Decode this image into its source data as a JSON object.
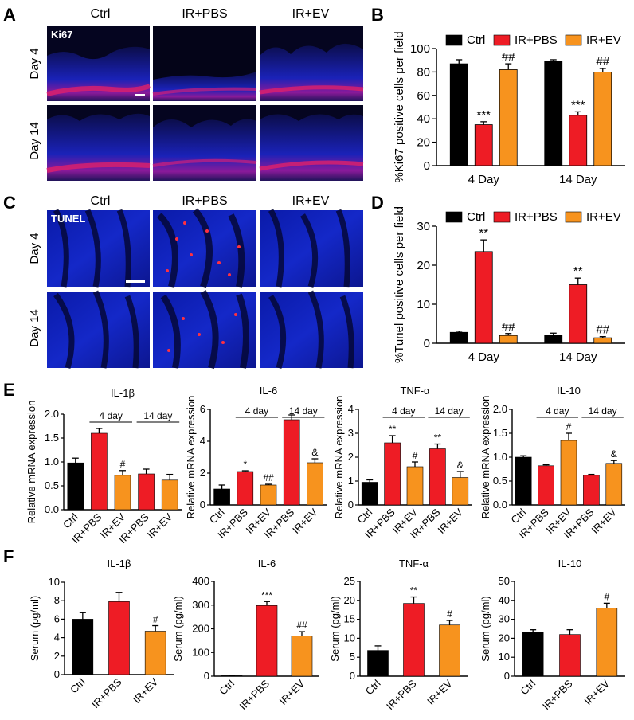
{
  "colors": {
    "ctrl": "#000000",
    "ir_pbs": "#ee1c25",
    "ir_ev": "#f7931e"
  },
  "panels": {
    "a": {
      "label": "A",
      "columns": [
        "Ctrl",
        "IR+PBS",
        "IR+EV"
      ],
      "rows": [
        "Day 4",
        "Day 14"
      ],
      "stain": "Ki67"
    },
    "c": {
      "label": "C",
      "columns": [
        "Ctrl",
        "IR+PBS",
        "IR+EV"
      ],
      "rows": [
        "Day 4",
        "Day 14"
      ],
      "stain": "TUNEL"
    },
    "e": {
      "label": "E"
    },
    "f": {
      "label": "F"
    },
    "b_label": "B",
    "d_label": "D"
  },
  "chart_data": [
    {
      "id": "B",
      "type": "bar",
      "ylabel": "%Ki67 positive cells per field",
      "ylim": [
        0,
        100
      ],
      "yticks": [
        0,
        20,
        40,
        60,
        80,
        100
      ],
      "categories": [
        "4 Day",
        "14 Day"
      ],
      "legend": [
        "Ctrl",
        "IR+PBS",
        "IR+EV"
      ],
      "legend_position": "top",
      "series": [
        {
          "name": "Ctrl",
          "values": [
            87,
            89
          ],
          "errors": [
            3.5,
            1.5
          ],
          "sig": [
            "",
            ""
          ]
        },
        {
          "name": "IR+PBS",
          "values": [
            35,
            43
          ],
          "errors": [
            2.5,
            3
          ],
          "sig": [
            "***",
            "***"
          ]
        },
        {
          "name": "IR+EV",
          "values": [
            82,
            80
          ],
          "errors": [
            5,
            3
          ],
          "sig": [
            "##",
            "##"
          ]
        }
      ]
    },
    {
      "id": "D",
      "type": "bar",
      "ylabel": "%Tunel positive cells per field",
      "ylim": [
        0,
        30
      ],
      "yticks": [
        0,
        10,
        20,
        30
      ],
      "categories": [
        "4 Day",
        "14 Day"
      ],
      "legend": [
        "Ctrl",
        "IR+PBS",
        "IR+EV"
      ],
      "legend_position": "top",
      "series": [
        {
          "name": "Ctrl",
          "values": [
            2.8,
            2.0
          ],
          "errors": [
            0.3,
            0.6
          ],
          "sig": [
            "",
            ""
          ]
        },
        {
          "name": "IR+PBS",
          "values": [
            23.5,
            15
          ],
          "errors": [
            3,
            1.7
          ],
          "sig": [
            "**",
            "**"
          ]
        },
        {
          "name": "IR+EV",
          "values": [
            2.0,
            1.4
          ],
          "errors": [
            0.5,
            0.3
          ],
          "sig": [
            "##",
            "##"
          ]
        }
      ]
    },
    {
      "id": "E1",
      "type": "bar",
      "title": "IL-1β",
      "ylabel": "Relative mRNA expression",
      "ylim": [
        0,
        2.0
      ],
      "yticks": [
        "0.0",
        "0.5",
        "1.0",
        "1.5",
        "2.0"
      ],
      "categories": [
        "Ctrl",
        "IR+PBS",
        "IR+EV",
        "IR+PBS",
        "IR+EV"
      ],
      "values": [
        0.98,
        1.6,
        0.72,
        0.75,
        0.62
      ],
      "errors": [
        0.1,
        0.1,
        0.1,
        0.1,
        0.12
      ],
      "series_keys": [
        "ctrl",
        "ir_pbs",
        "ir_ev",
        "ir_pbs",
        "ir_ev"
      ],
      "sig": [
        "",
        "",
        "#",
        "",
        ""
      ],
      "groups": [
        "4 day",
        "14 day"
      ]
    },
    {
      "id": "E2",
      "type": "bar",
      "title": "IL-6",
      "ylabel": "Relative mRNA expression",
      "ylim": [
        0,
        6
      ],
      "yticks": [
        "0",
        "2",
        "4",
        "6"
      ],
      "categories": [
        "Ctrl",
        "IR+PBS",
        "IR+EV",
        "IR+PBS",
        "IR+EV"
      ],
      "values": [
        1.0,
        2.1,
        1.25,
        5.35,
        2.65
      ],
      "errors": [
        0.25,
        0.05,
        0.05,
        0.3,
        0.25
      ],
      "series_keys": [
        "ctrl",
        "ir_pbs",
        "ir_ev",
        "ir_pbs",
        "ir_ev"
      ],
      "sig": [
        "",
        "*",
        "##",
        "",
        "&"
      ],
      "groups": [
        "4 day",
        "14 day"
      ]
    },
    {
      "id": "E3",
      "type": "bar",
      "title": "TNF-α",
      "ylabel": "Relative mRNA expression",
      "ylim": [
        0,
        4
      ],
      "yticks": [
        "0",
        "1",
        "2",
        "3",
        "4"
      ],
      "categories": [
        "Ctrl",
        "IR+PBS",
        "IR+EV",
        "IR+PBS",
        "IR+EV"
      ],
      "values": [
        0.95,
        2.6,
        1.6,
        2.35,
        1.15
      ],
      "errors": [
        0.1,
        0.3,
        0.2,
        0.2,
        0.25
      ],
      "series_keys": [
        "ctrl",
        "ir_pbs",
        "ir_ev",
        "ir_pbs",
        "ir_ev"
      ],
      "sig": [
        "",
        "**",
        "#",
        "**",
        "&"
      ],
      "groups": [
        "4 day",
        "14 day"
      ]
    },
    {
      "id": "E4",
      "type": "bar",
      "title": "IL-10",
      "ylabel": "Relative mRNA expression",
      "ylim": [
        0,
        2.0
      ],
      "yticks": [
        "0.0",
        "0.5",
        "1.0",
        "1.5",
        "2.0"
      ],
      "categories": [
        "Ctrl",
        "IR+PBS",
        "IR+EV",
        "IR+PBS",
        "IR+EV"
      ],
      "values": [
        1.0,
        0.82,
        1.35,
        0.62,
        0.87
      ],
      "errors": [
        0.03,
        0.02,
        0.15,
        0.02,
        0.06
      ],
      "series_keys": [
        "ctrl",
        "ir_pbs",
        "ir_ev",
        "ir_pbs",
        "ir_ev"
      ],
      "sig": [
        "",
        "",
        "#",
        "",
        "&"
      ],
      "groups": [
        "4 day",
        "14 day"
      ]
    },
    {
      "id": "F1",
      "type": "bar",
      "title": "IL-1β",
      "ylabel": "Serum (pg/ml)",
      "ylim": [
        0,
        10
      ],
      "yticks": [
        "0",
        "2",
        "4",
        "6",
        "8",
        "10"
      ],
      "categories": [
        "Ctrl",
        "IR+PBS",
        "IR+EV"
      ],
      "values": [
        6.0,
        7.9,
        4.7
      ],
      "errors": [
        0.7,
        1.0,
        0.6
      ],
      "series_keys": [
        "ctrl",
        "ir_pbs",
        "ir_ev"
      ],
      "sig": [
        "",
        "",
        "#"
      ]
    },
    {
      "id": "F2",
      "type": "bar",
      "title": "IL-6",
      "ylabel": "Serum (pg/ml)",
      "ylim": [
        0,
        400
      ],
      "yticks": [
        "0",
        "100",
        "200",
        "300",
        "400"
      ],
      "categories": [
        "Ctrl",
        "IR+PBS",
        "IR+EV"
      ],
      "values": [
        2,
        298,
        170
      ],
      "errors": [
        2,
        17,
        18
      ],
      "series_keys": [
        "ctrl",
        "ir_pbs",
        "ir_ev"
      ],
      "sig": [
        "",
        "***",
        "##"
      ]
    },
    {
      "id": "F3",
      "type": "bar",
      "title": "TNF-α",
      "ylabel": "Serum (pg/ml)",
      "ylim": [
        0,
        25
      ],
      "yticks": [
        "0",
        "5",
        "10",
        "15",
        "20",
        "25"
      ],
      "categories": [
        "Ctrl",
        "IR+PBS",
        "IR+EV"
      ],
      "values": [
        6.8,
        19.2,
        13.5
      ],
      "errors": [
        1.2,
        1.7,
        1.2
      ],
      "series_keys": [
        "ctrl",
        "ir_pbs",
        "ir_ev"
      ],
      "sig": [
        "",
        "**",
        "#"
      ]
    },
    {
      "id": "F4",
      "type": "bar",
      "title": "IL-10",
      "ylabel": "Serum (pg/ml)",
      "ylim": [
        0,
        50
      ],
      "yticks": [
        "0",
        "10",
        "20",
        "30",
        "40",
        "50"
      ],
      "categories": [
        "Ctrl",
        "IR+PBS",
        "IR+EV"
      ],
      "values": [
        23,
        22,
        36
      ],
      "errors": [
        1.5,
        2.5,
        2.5
      ],
      "series_keys": [
        "ctrl",
        "ir_pbs",
        "ir_ev"
      ],
      "sig": [
        "",
        "",
        "#"
      ]
    }
  ]
}
